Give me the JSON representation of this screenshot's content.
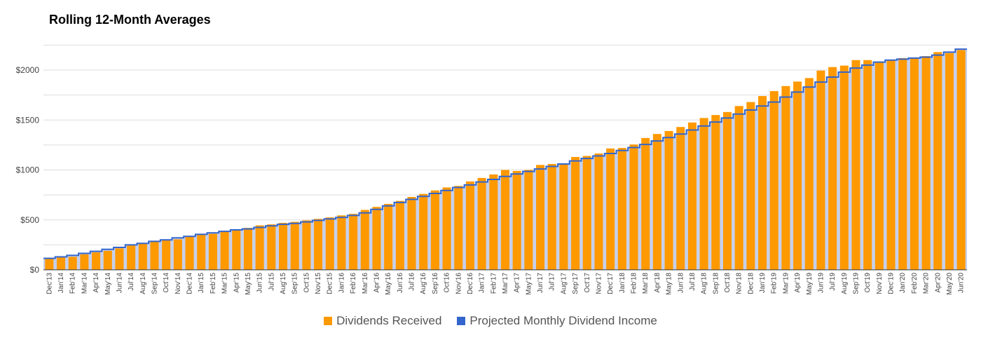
{
  "chart_data": {
    "type": "bar",
    "title": "Rolling 12-Month Averages",
    "ylim": [
      0,
      2200
    ],
    "yticks": [
      0,
      500,
      1000,
      1500,
      2000
    ],
    "ytick_labels": [
      "$0",
      "$500",
      "$1000",
      "$1500",
      "$2000"
    ],
    "grid": true,
    "legend_position": "bottom",
    "categories": [
      "Dec'13",
      "Jan'14",
      "Feb'14",
      "Mar'14",
      "Apr'14",
      "May'14",
      "Jun'14",
      "Jul'14",
      "Aug'14",
      "Sep'14",
      "Oct'14",
      "Nov'14",
      "Dec'14",
      "Jan'15",
      "Feb'15",
      "Mar'15",
      "Apr'15",
      "May'15",
      "Jun'15",
      "Jul'15",
      "Aug'15",
      "Sep'15",
      "Oct'15",
      "Nov'15",
      "Dec'15",
      "Jan'16",
      "Feb'16",
      "Mar'16",
      "Apr'16",
      "May'16",
      "Jun'16",
      "Jul'16",
      "Aug'16",
      "Sep'16",
      "Oct'16",
      "Nov'16",
      "Dec'16",
      "Jan'17",
      "Feb'17",
      "Mar'17",
      "Apr'17",
      "May'17",
      "Jun'17",
      "Jul'17",
      "Aug'17",
      "Sep'17",
      "Oct'17",
      "Nov'17",
      "Dec'17",
      "Jan'18",
      "Feb'18",
      "Mar'18",
      "Apr'18",
      "May'18",
      "Jun'18",
      "Jul'18",
      "Aug'18",
      "Sep'18",
      "Oct'18",
      "Nov'18",
      "Dec'18",
      "Jan'19",
      "Feb'19",
      "Mar'19",
      "Apr'19",
      "May'19",
      "Jun'19",
      "Jul'19",
      "Aug'19",
      "Sep'19",
      "Oct'19",
      "Nov'19",
      "Dec'19",
      "Jan'20",
      "Feb'20",
      "Mar'20",
      "Apr'20",
      "May'20",
      "Jun'20"
    ],
    "series": [
      {
        "name": "Dividends Received",
        "color": "#ff9900",
        "values": [
          115,
          125,
          130,
          155,
          175,
          190,
          215,
          245,
          260,
          285,
          295,
          305,
          330,
          355,
          360,
          385,
          405,
          420,
          445,
          455,
          470,
          480,
          495,
          510,
          525,
          545,
          560,
          600,
          630,
          660,
          690,
          730,
          760,
          795,
          825,
          840,
          885,
          920,
          955,
          1000,
          990,
          1000,
          1050,
          1060,
          1060,
          1130,
          1140,
          1165,
          1215,
          1220,
          1255,
          1320,
          1360,
          1390,
          1430,
          1475,
          1520,
          1550,
          1580,
          1640,
          1680,
          1740,
          1790,
          1840,
          1885,
          1920,
          1995,
          2030,
          2045,
          2100,
          2100,
          2085,
          2095,
          2120,
          2120,
          2140,
          2180,
          2170,
          2200
        ]
      },
      {
        "name": "Projected Monthly Dividend Income",
        "color": "#3366cc",
        "values": [
          115,
          130,
          145,
          165,
          185,
          205,
          225,
          250,
          265,
          285,
          300,
          320,
          335,
          355,
          370,
          385,
          400,
          410,
          425,
          440,
          455,
          465,
          480,
          495,
          510,
          525,
          545,
          570,
          605,
          640,
          675,
          705,
          735,
          765,
          795,
          825,
          850,
          880,
          905,
          935,
          960,
          985,
          1010,
          1035,
          1060,
          1090,
          1115,
          1140,
          1165,
          1195,
          1225,
          1255,
          1290,
          1325,
          1360,
          1400,
          1440,
          1480,
          1520,
          1560,
          1600,
          1640,
          1680,
          1730,
          1780,
          1830,
          1880,
          1930,
          1980,
          2020,
          2050,
          2080,
          2100,
          2110,
          2120,
          2130,
          2150,
          2180,
          2210
        ]
      }
    ]
  }
}
